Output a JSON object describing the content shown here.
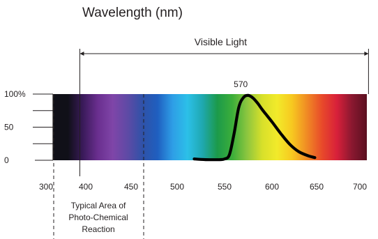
{
  "chart_data": {
    "type": "line",
    "title": "Wavelength (nm)",
    "xlabel": "Wavelength (nm)",
    "ylabel": "",
    "xlim": [
      300,
      700
    ],
    "ylim": [
      0,
      100
    ],
    "x_ticks": [
      300,
      400,
      450,
      500,
      550,
      600,
      650,
      700
    ],
    "y_ticks": [
      {
        "value": 100,
        "label": "100%"
      },
      {
        "value": 50,
        "label": "50"
      },
      {
        "value": 0,
        "label": "0"
      }
    ],
    "visible_light": {
      "label": "Visible Light",
      "range": [
        385,
        710
      ]
    },
    "photochemical_region": {
      "label": "Typical Area of Photo-Chemical Reaction",
      "range": [
        300,
        440
      ]
    },
    "peak": {
      "x": 570,
      "label": "570"
    },
    "series": [
      {
        "x": [
          518,
          530,
          545,
          550,
          555,
          560,
          565,
          570,
          575,
          580,
          585,
          590,
          600,
          610,
          620,
          630,
          640,
          648
        ],
        "y": [
          2,
          1,
          1,
          2,
          8,
          40,
          80,
          95,
          98,
          94,
          86,
          76,
          58,
          40,
          24,
          13,
          7,
          4
        ]
      }
    ],
    "spectrum_colors": [
      "#101018",
      "#101018",
      "#3a1a5a",
      "#6a2f8f",
      "#7f45a8",
      "#5e4aa5",
      "#2f52a8",
      "#1f5fc0",
      "#2e9ee6",
      "#2cc0e8",
      "#1fa8b0",
      "#1c9a4a",
      "#3cae3a",
      "#8dc63f",
      "#d8e02a",
      "#f2ea2a",
      "#f7c820",
      "#f08a24",
      "#e84a2a",
      "#d8203a",
      "#8a1830",
      "#5a1020"
    ]
  }
}
